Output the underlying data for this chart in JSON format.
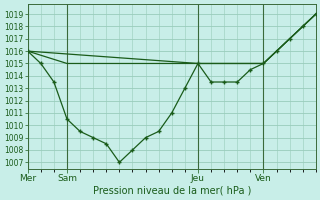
{
  "title": "Pression niveau de la mer( hPa )",
  "background_color": "#c8eee8",
  "grid_color": "#99ccbb",
  "line_color": "#1a5c1a",
  "marker_color": "#1a5c1a",
  "ylim": [
    1006.5,
    1019.8
  ],
  "yticks": [
    1007,
    1008,
    1009,
    1010,
    1011,
    1012,
    1013,
    1014,
    1015,
    1016,
    1017,
    1018,
    1019
  ],
  "day_labels": [
    "Mer",
    "Sam",
    "Jeu",
    "Ven"
  ],
  "day_positions": [
    0,
    3,
    13,
    18
  ],
  "series1_x": [
    0,
    13,
    18,
    22
  ],
  "series1_y": [
    1016,
    1015,
    1015,
    1019
  ],
  "series2_x": [
    0,
    3,
    18,
    22
  ],
  "series2_y": [
    1016,
    1015,
    1015,
    1019
  ],
  "series3_x": [
    0,
    1,
    2,
    3,
    4,
    5,
    6,
    7,
    8,
    9,
    10,
    11,
    12,
    13,
    14,
    15,
    16,
    17,
    18,
    19,
    20,
    21,
    22
  ],
  "series3_y": [
    1016,
    1015,
    1013.5,
    1010.5,
    1009.5,
    1009,
    1008.5,
    1007,
    1008,
    1009,
    1009.5,
    1011,
    1013,
    1015,
    1013.5,
    1013.5,
    1013.5,
    1014.5,
    1015,
    1016,
    1017,
    1018,
    1019
  ],
  "xlim": [
    0,
    22
  ],
  "ylabel_fontsize": 5.5,
  "xlabel_fontsize": 7.0,
  "xtick_fontsize": 6.5
}
